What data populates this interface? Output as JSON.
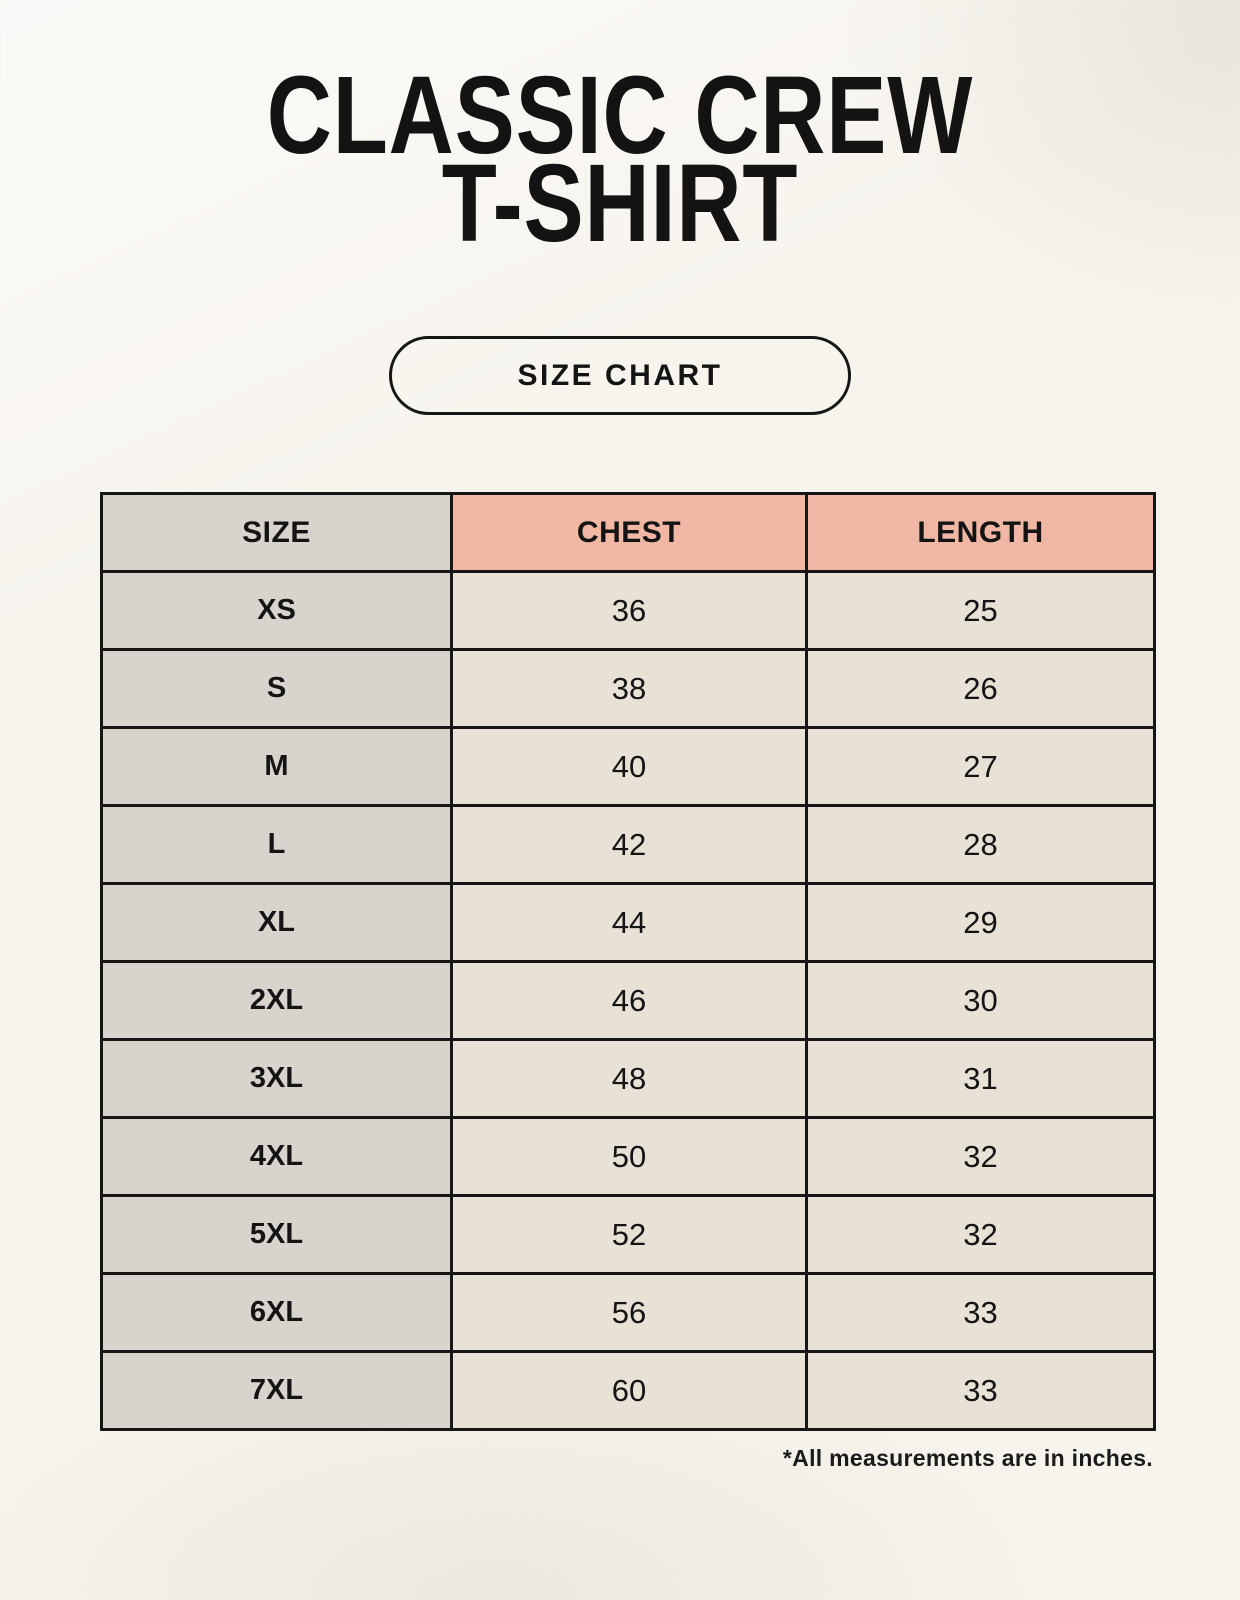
{
  "page": {
    "title_line1": "CLASSIC CREW",
    "title_line2": "T-SHIRT",
    "badge_label": "SIZE CHART",
    "footnote": "*All measurements are in inches."
  },
  "colors": {
    "background": "#f7f4ee",
    "table_border": "#161616",
    "size_column_bg": "#d9d3ce",
    "header_accent_bg": "#f0b8a4",
    "data_cell_bg": "#e8e1d6",
    "text": "#141414"
  },
  "chart_data": {
    "type": "table",
    "title": "CLASSIC CREW T-SHIRT",
    "subtitle": "SIZE CHART",
    "columns": [
      "SIZE",
      "CHEST",
      "LENGTH"
    ],
    "units": "inches",
    "rows": [
      [
        "XS",
        "36",
        "25"
      ],
      [
        "S",
        "38",
        "26"
      ],
      [
        "M",
        "40",
        "27"
      ],
      [
        "L",
        "42",
        "28"
      ],
      [
        "XL",
        "44",
        "29"
      ],
      [
        "2XL",
        "46",
        "30"
      ],
      [
        "3XL",
        "48",
        "31"
      ],
      [
        "4XL",
        "50",
        "32"
      ],
      [
        "5XL",
        "52",
        "32"
      ],
      [
        "6XL",
        "56",
        "33"
      ],
      [
        "7XL",
        "60",
        "33"
      ]
    ]
  }
}
